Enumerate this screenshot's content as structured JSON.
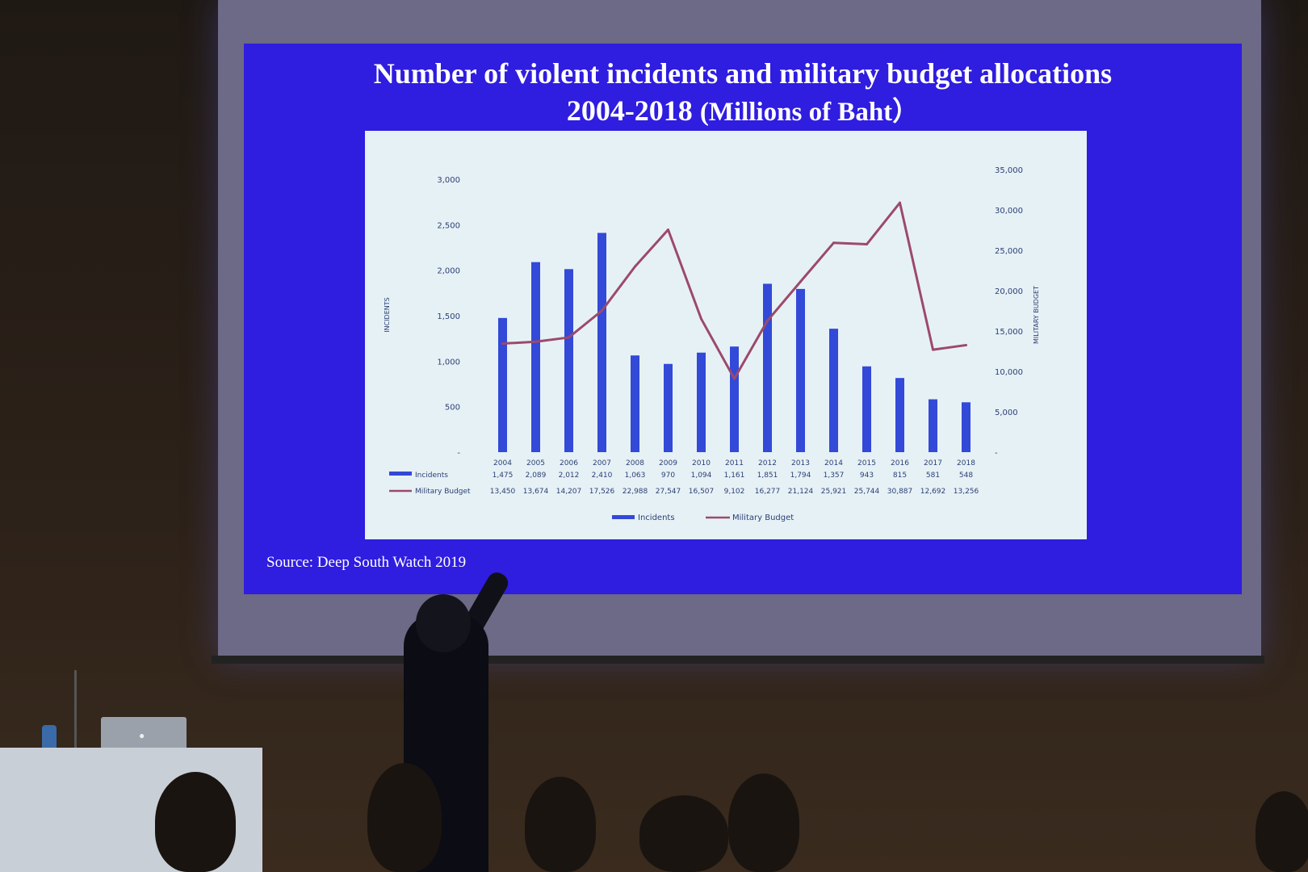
{
  "slide": {
    "title_line1": "Number of violent incidents and military budget allocations",
    "title_line2": "2004-2018",
    "title_unit": "(Millions of Baht）",
    "source": "Source: Deep South Watch 2019"
  },
  "colors": {
    "slide_bg": "#2f1de0",
    "panel_bg": "#e6f1f6",
    "bar": "#3349d8",
    "line": "#9c4a6a",
    "tick_text": "#2c3f73"
  },
  "chart_data": {
    "type": "bar",
    "title": "Number of violent incidents and military budget allocations 2004-2018 (Millions of Baht）",
    "xlabel": "",
    "ylabel": "INCIDENTS",
    "y2label": "MILITARY BUDGET",
    "categories": [
      "2004",
      "2005",
      "2006",
      "2007",
      "2008",
      "2009",
      "2010",
      "2011",
      "2012",
      "2013",
      "2014",
      "2015",
      "2016",
      "2017",
      "2018"
    ],
    "ylim": [
      0,
      3000
    ],
    "y2lim": [
      0,
      35000
    ],
    "yticks": [
      "-",
      "500",
      "1,000",
      "1,500",
      "2,000",
      "2,500",
      "3,000"
    ],
    "y2ticks": [
      "-",
      "5,000",
      "10,000",
      "15,000",
      "20,000",
      "25,000",
      "30,000",
      "35,000"
    ],
    "legend_position": "bottom",
    "grid": false,
    "series": [
      {
        "name": "Incidents",
        "kind": "bar",
        "axis": "left",
        "values": [
          1475,
          2089,
          2012,
          2410,
          1063,
          970,
          1094,
          1161,
          1851,
          1794,
          1357,
          943,
          815,
          581,
          548
        ],
        "labels": [
          "1,475",
          "2,089",
          "2,012",
          "2,410",
          "1,063",
          "970",
          "1,094",
          "1,161",
          "1,851",
          "1,794",
          "1,357",
          "943",
          "815",
          "581",
          "548"
        ]
      },
      {
        "name": "Military Budget",
        "kind": "line",
        "axis": "right",
        "values": [
          13450,
          13674,
          14207,
          17526,
          22988,
          27547,
          16507,
          9102,
          16277,
          21124,
          25921,
          25744,
          30887,
          12692,
          13256
        ],
        "labels": [
          "13,450",
          "13,674",
          "14,207",
          "17,526",
          "22,988",
          "27,547",
          "16,507",
          "9,102",
          "16,277",
          "21,124",
          "25,921",
          "25,744",
          "30,887",
          "12,692",
          "13,256"
        ]
      }
    ]
  }
}
